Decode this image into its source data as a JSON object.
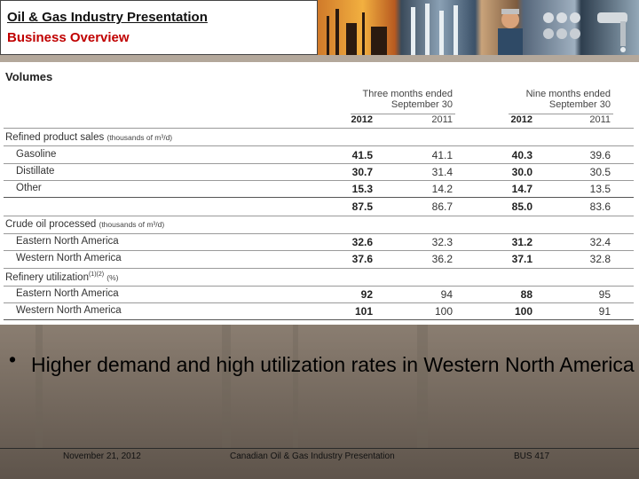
{
  "header": {
    "title": "Oil & Gas Industry Presentation",
    "subtitle": "Business Overview"
  },
  "table": {
    "title": "Volumes",
    "three_months_line1": "Three months ended",
    "three_months_line2": "September 30",
    "nine_months_line1": "Nine months ended",
    "nine_months_line2": "September 30",
    "years": [
      "2012",
      "2011",
      "2012",
      "2011"
    ],
    "sections": [
      {
        "label": "Refined product sales",
        "unit": "(thousands of m³/d)",
        "rows": [
          {
            "label": "Gasoline",
            "values": [
              "41.5",
              "41.1",
              "40.3",
              "39.6"
            ]
          },
          {
            "label": "Distillate",
            "values": [
              "30.7",
              "31.4",
              "30.0",
              "30.5"
            ]
          },
          {
            "label": "Other",
            "values": [
              "15.3",
              "14.2",
              "14.7",
              "13.5"
            ]
          }
        ],
        "total": [
          "87.5",
          "86.7",
          "85.0",
          "83.6"
        ]
      },
      {
        "label": "Crude oil processed",
        "unit": "(thousands of m³/d)",
        "rows": [
          {
            "label": "Eastern North America",
            "values": [
              "32.6",
              "32.3",
              "31.2",
              "32.4"
            ]
          },
          {
            "label": "Western North America",
            "values": [
              "37.6",
              "36.2",
              "37.1",
              "32.8"
            ]
          }
        ]
      },
      {
        "label": "Refinery utilization",
        "sup": "(1)(2)",
        "unit": "(%)",
        "rows": [
          {
            "label": "Eastern North America",
            "values": [
              "92",
              "94",
              "88",
              "95"
            ]
          },
          {
            "label": "Western North America",
            "values": [
              "101",
              "100",
              "100",
              "91"
            ]
          }
        ]
      }
    ]
  },
  "bullet": {
    "text": "Higher demand and high utilization rates in Western North America"
  },
  "footer": {
    "date": "November 21, 2012",
    "center": "Canadian Oil & Gas Industry Presentation",
    "course": "BUS 417"
  }
}
